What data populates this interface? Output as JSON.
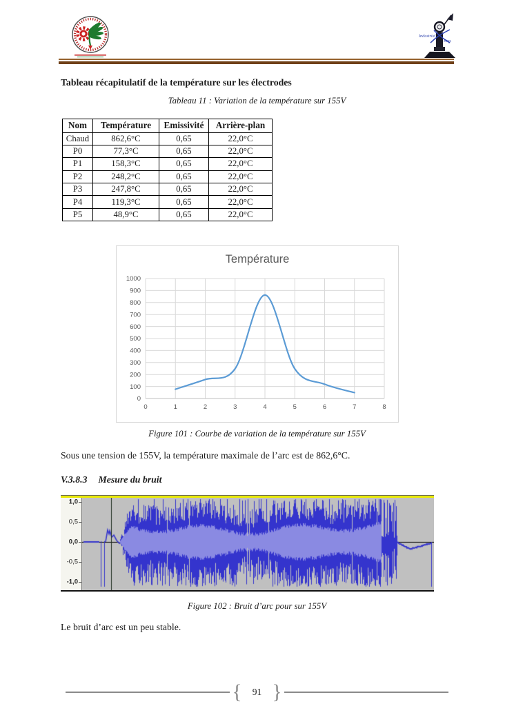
{
  "heading": "Tableau récapitulatif de la température sur les électrodes",
  "table_caption": "Tableau 11 : Variation de la température sur 155V",
  "table": {
    "headers": [
      "Nom",
      "Température",
      "Emissivité",
      "Arrière-plan"
    ],
    "rows": [
      [
        "Chaud",
        "862,6°C",
        "0,65",
        "22,0°C"
      ],
      [
        "P0",
        "77,3°C",
        "0,65",
        "22,0°C"
      ],
      [
        "P1",
        "158,3°C",
        "0,65",
        "22,0°C"
      ],
      [
        "P2",
        "248,2°C",
        "0,65",
        "22,0°C"
      ],
      [
        "P3",
        "247,8°C",
        "0,65",
        "22,0°C"
      ],
      [
        "P4",
        "119,3°C",
        "0,65",
        "22,0°C"
      ],
      [
        "P5",
        "48,9°C",
        "0,65",
        "22,0°C"
      ]
    ]
  },
  "chart_data": {
    "type": "line",
    "title": "Température",
    "x": [
      1,
      2,
      3,
      4,
      5,
      6,
      7
    ],
    "values": [
      77.3,
      158.3,
      248.2,
      862.6,
      247.8,
      119.3,
      48.9
    ],
    "xlim": [
      0,
      8
    ],
    "ylim": [
      0,
      1000
    ],
    "x_ticks": [
      0,
      1,
      2,
      3,
      4,
      5,
      6,
      7,
      8
    ],
    "y_ticks": [
      0,
      100,
      200,
      300,
      400,
      500,
      600,
      700,
      800,
      900,
      1000
    ],
    "grid": true,
    "legend": "none",
    "smooth": true,
    "line_color": "#5b9bd5",
    "title_color": "#595959"
  },
  "figure101_caption": "Figure 101 : Courbe de variation de la température sur 155V",
  "paragraph1": "Sous une tension de 155V, la température maximale de l’arc est de 862,6°C.",
  "section_heading": {
    "number": "V.3.8.3",
    "title": "Mesure du bruit"
  },
  "waveform": {
    "y_labels": [
      "1,0",
      "0,5",
      "0,0",
      "-0,5",
      "-1,0"
    ],
    "bg_color": "#c0c0c0",
    "wave_color": "#3434cd",
    "rms_color": "#8a8ae2",
    "cursor_color": "#1b2a1d",
    "segments": {
      "silence_end": 0.049,
      "noise_start": 0.106,
      "noise_full": 0.14,
      "noise_end": 0.849,
      "cluster_end": 0.894,
      "dip_min": 0.931,
      "tail_end": 0.992,
      "cursor": 0.082
    }
  },
  "figure102_caption": "Figure 102 : Bruit d’arc pour sur 155V",
  "paragraph2": "Le bruit d’arc est un peu stable.",
  "footer": {
    "page_number": "91"
  }
}
